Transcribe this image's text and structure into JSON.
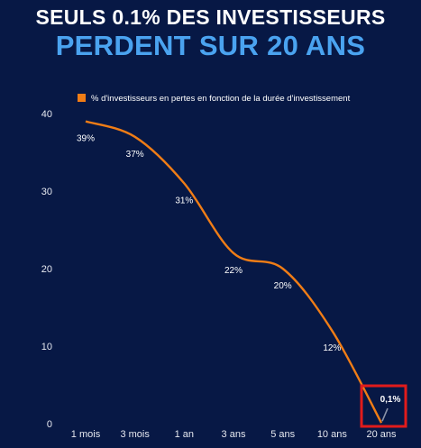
{
  "header": {
    "line1": "SEULS 0.1% DES INVESTISSEURS",
    "line2": "PERDENT SUR 20 ANS"
  },
  "colors": {
    "background": "#071845",
    "line": "#f07d16",
    "highlight_box": "#e11b1b",
    "title_accent": "#4aa3f0"
  },
  "chart_data": {
    "type": "line",
    "categories": [
      "1 mois",
      "3 mois",
      "1 an",
      "3 ans",
      "5 ans",
      "10 ans",
      "20 ans"
    ],
    "series": [
      {
        "name": "% d'investisseurs en pertes en fonction de la durée d'investissement",
        "values": [
          39,
          37,
          31,
          22,
          20,
          12,
          0.1
        ],
        "labels": [
          "39%",
          "37%",
          "31%",
          "22%",
          "20%",
          "12%",
          "0,1%"
        ]
      }
    ],
    "yticks": [
      0,
      10,
      20,
      30,
      40
    ],
    "ylim": [
      0,
      40
    ],
    "legend_position": "top",
    "highlight": "20 ans"
  }
}
